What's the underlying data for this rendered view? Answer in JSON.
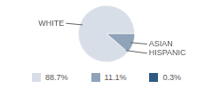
{
  "chart_data": {
    "type": "pie",
    "categories": [
      "WHITE",
      "ASIAN",
      "HISPANIC"
    ],
    "values": [
      88.7,
      11.1,
      0.3
    ],
    "value_labels": [
      "88.7%",
      "11.1%",
      "0.3%"
    ],
    "colors": [
      "#d7dee7",
      "#8fa3b9",
      "#2e5a82"
    ],
    "legend": "bottom"
  }
}
